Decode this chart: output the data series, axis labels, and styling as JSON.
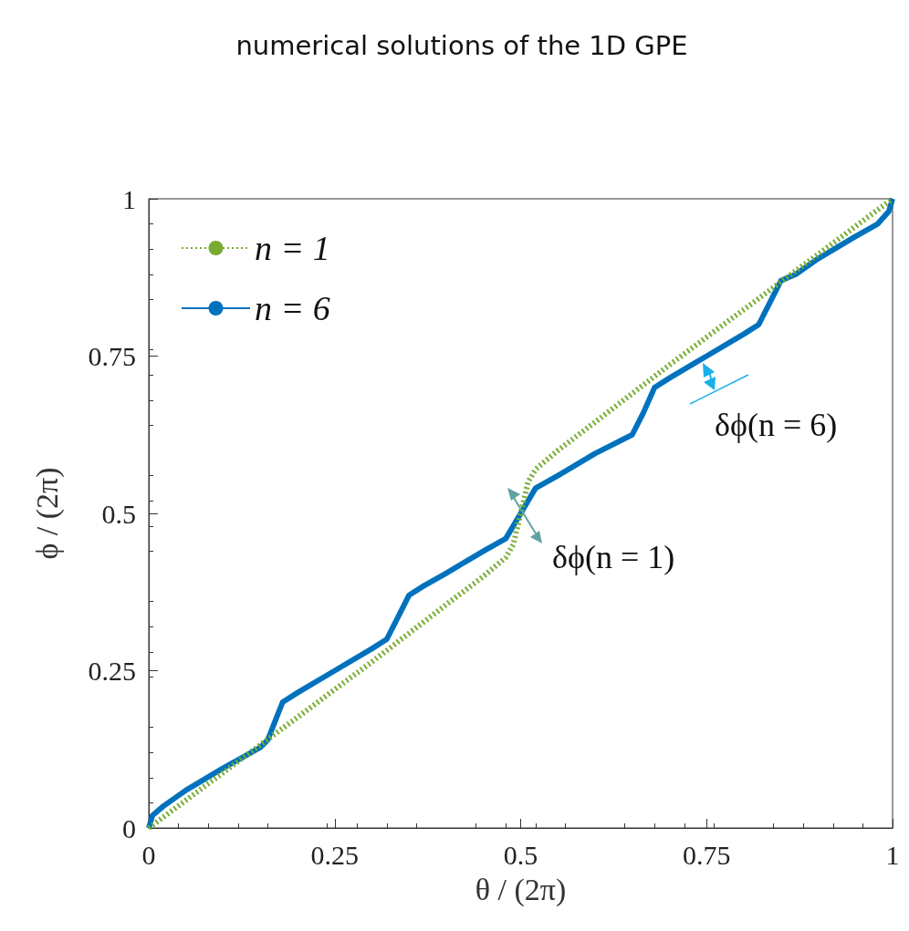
{
  "chart_data": {
    "type": "line",
    "title": "numerical solutions of the 1D GPE",
    "xlabel": "θ / (2π)",
    "ylabel": "ϕ / (2π)",
    "xlim": [
      0,
      1
    ],
    "ylim": [
      0,
      1
    ],
    "xticks": [
      0,
      0.25,
      0.5,
      0.75,
      1
    ],
    "yticks": [
      0,
      0.25,
      0.5,
      0.75,
      1
    ],
    "grid": false,
    "legend": "top left",
    "marker": "none",
    "annotations": [
      "δϕ(n = 6)",
      "δϕ(n = 1)"
    ],
    "series": [
      {
        "name": "n = 1",
        "color": "#77ac30",
        "line_style": "dotted",
        "x": [
          0,
          0.1,
          0.2,
          0.3,
          0.4,
          0.45,
          0.48,
          0.49,
          0.5,
          0.51,
          0.52,
          0.55,
          0.6,
          0.7,
          0.8,
          0.9,
          1
        ],
        "values": [
          0,
          0.088,
          0.176,
          0.264,
          0.355,
          0.4,
          0.43,
          0.45,
          0.5,
          0.55,
          0.57,
          0.6,
          0.645,
          0.736,
          0.824,
          0.912,
          1
        ]
      },
      {
        "name": "n = 6",
        "color": "#0072bd",
        "line_style": "solid",
        "x": [
          0,
          0.005,
          0.02,
          0.05,
          0.1,
          0.15,
          0.16,
          0.17,
          0.18,
          0.2,
          0.25,
          0.3,
          0.32,
          0.335,
          0.35,
          0.37,
          0.4,
          0.45,
          0.48,
          0.5,
          0.52,
          0.55,
          0.6,
          0.65,
          0.665,
          0.68,
          0.7,
          0.75,
          0.8,
          0.82,
          0.835,
          0.85,
          0.87,
          0.9,
          0.95,
          0.98,
          0.995,
          1
        ],
        "values": [
          0,
          0.02,
          0.035,
          0.06,
          0.095,
          0.128,
          0.14,
          0.17,
          0.2,
          0.215,
          0.25,
          0.285,
          0.3,
          0.335,
          0.37,
          0.385,
          0.405,
          0.44,
          0.46,
          0.5,
          0.54,
          0.56,
          0.595,
          0.625,
          0.66,
          0.7,
          0.715,
          0.75,
          0.785,
          0.8,
          0.835,
          0.87,
          0.88,
          0.905,
          0.94,
          0.96,
          0.98,
          1
        ]
      }
    ]
  }
}
